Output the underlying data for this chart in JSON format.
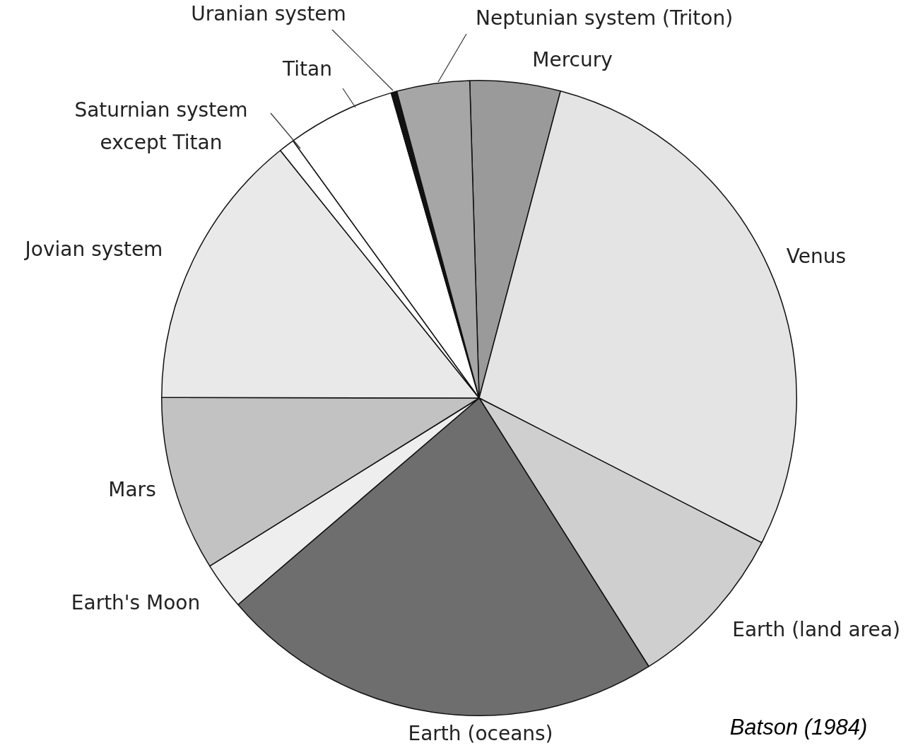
{
  "chart_data": {
    "type": "pie",
    "categories": [
      "Mercury",
      "Venus",
      "Earth (land area)",
      "Earth (oceans)",
      "Earth's Moon",
      "Mars",
      "Jovian system",
      "Saturnian system except Titan",
      "Titan",
      "Uranian system",
      "Neptunian system (Triton)"
    ],
    "values": [
      4.6,
      28.4,
      8.5,
      22.7,
      2.4,
      8.9,
      14.2,
      0.8,
      5.5,
      0.3,
      3.7
    ],
    "colors": [
      "#9a9a9a",
      "#e4e4e4",
      "#cfcfcf",
      "#6e6e6e",
      "#eeeeee",
      "#c2c2c2",
      "#e9e9e9",
      "#ffffff",
      "#ffffff",
      "#111111",
      "#a6a6a6"
    ],
    "annotations": [
      "Batson (1984)"
    ]
  }
}
